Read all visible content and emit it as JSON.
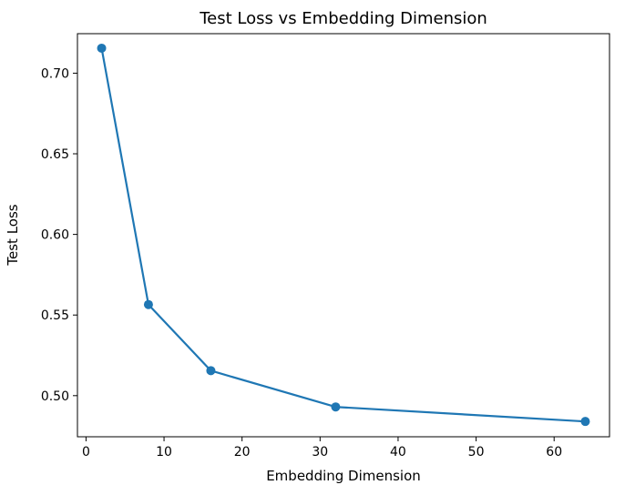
{
  "chart_data": {
    "type": "line",
    "title": "Test Loss vs Embedding Dimension",
    "xlabel": "Embedding Dimension",
    "ylabel": "Test Loss",
    "xlim": [
      -1.1,
      67.1
    ],
    "ylim": [
      0.4745,
      0.7245
    ],
    "xticks": [
      0,
      10,
      20,
      30,
      40,
      50,
      60
    ],
    "yticks": [
      0.5,
      0.55,
      0.6,
      0.65,
      0.7
    ],
    "ytick_labels": [
      "0.50",
      "0.55",
      "0.60",
      "0.65",
      "0.70"
    ],
    "grid": false,
    "series": [
      {
        "x": [
          2,
          8,
          16,
          32,
          64
        ],
        "y": [
          0.7155,
          0.5565,
          0.5155,
          0.493,
          0.484
        ],
        "color": "#1f77b4",
        "marker": "circle"
      }
    ]
  }
}
